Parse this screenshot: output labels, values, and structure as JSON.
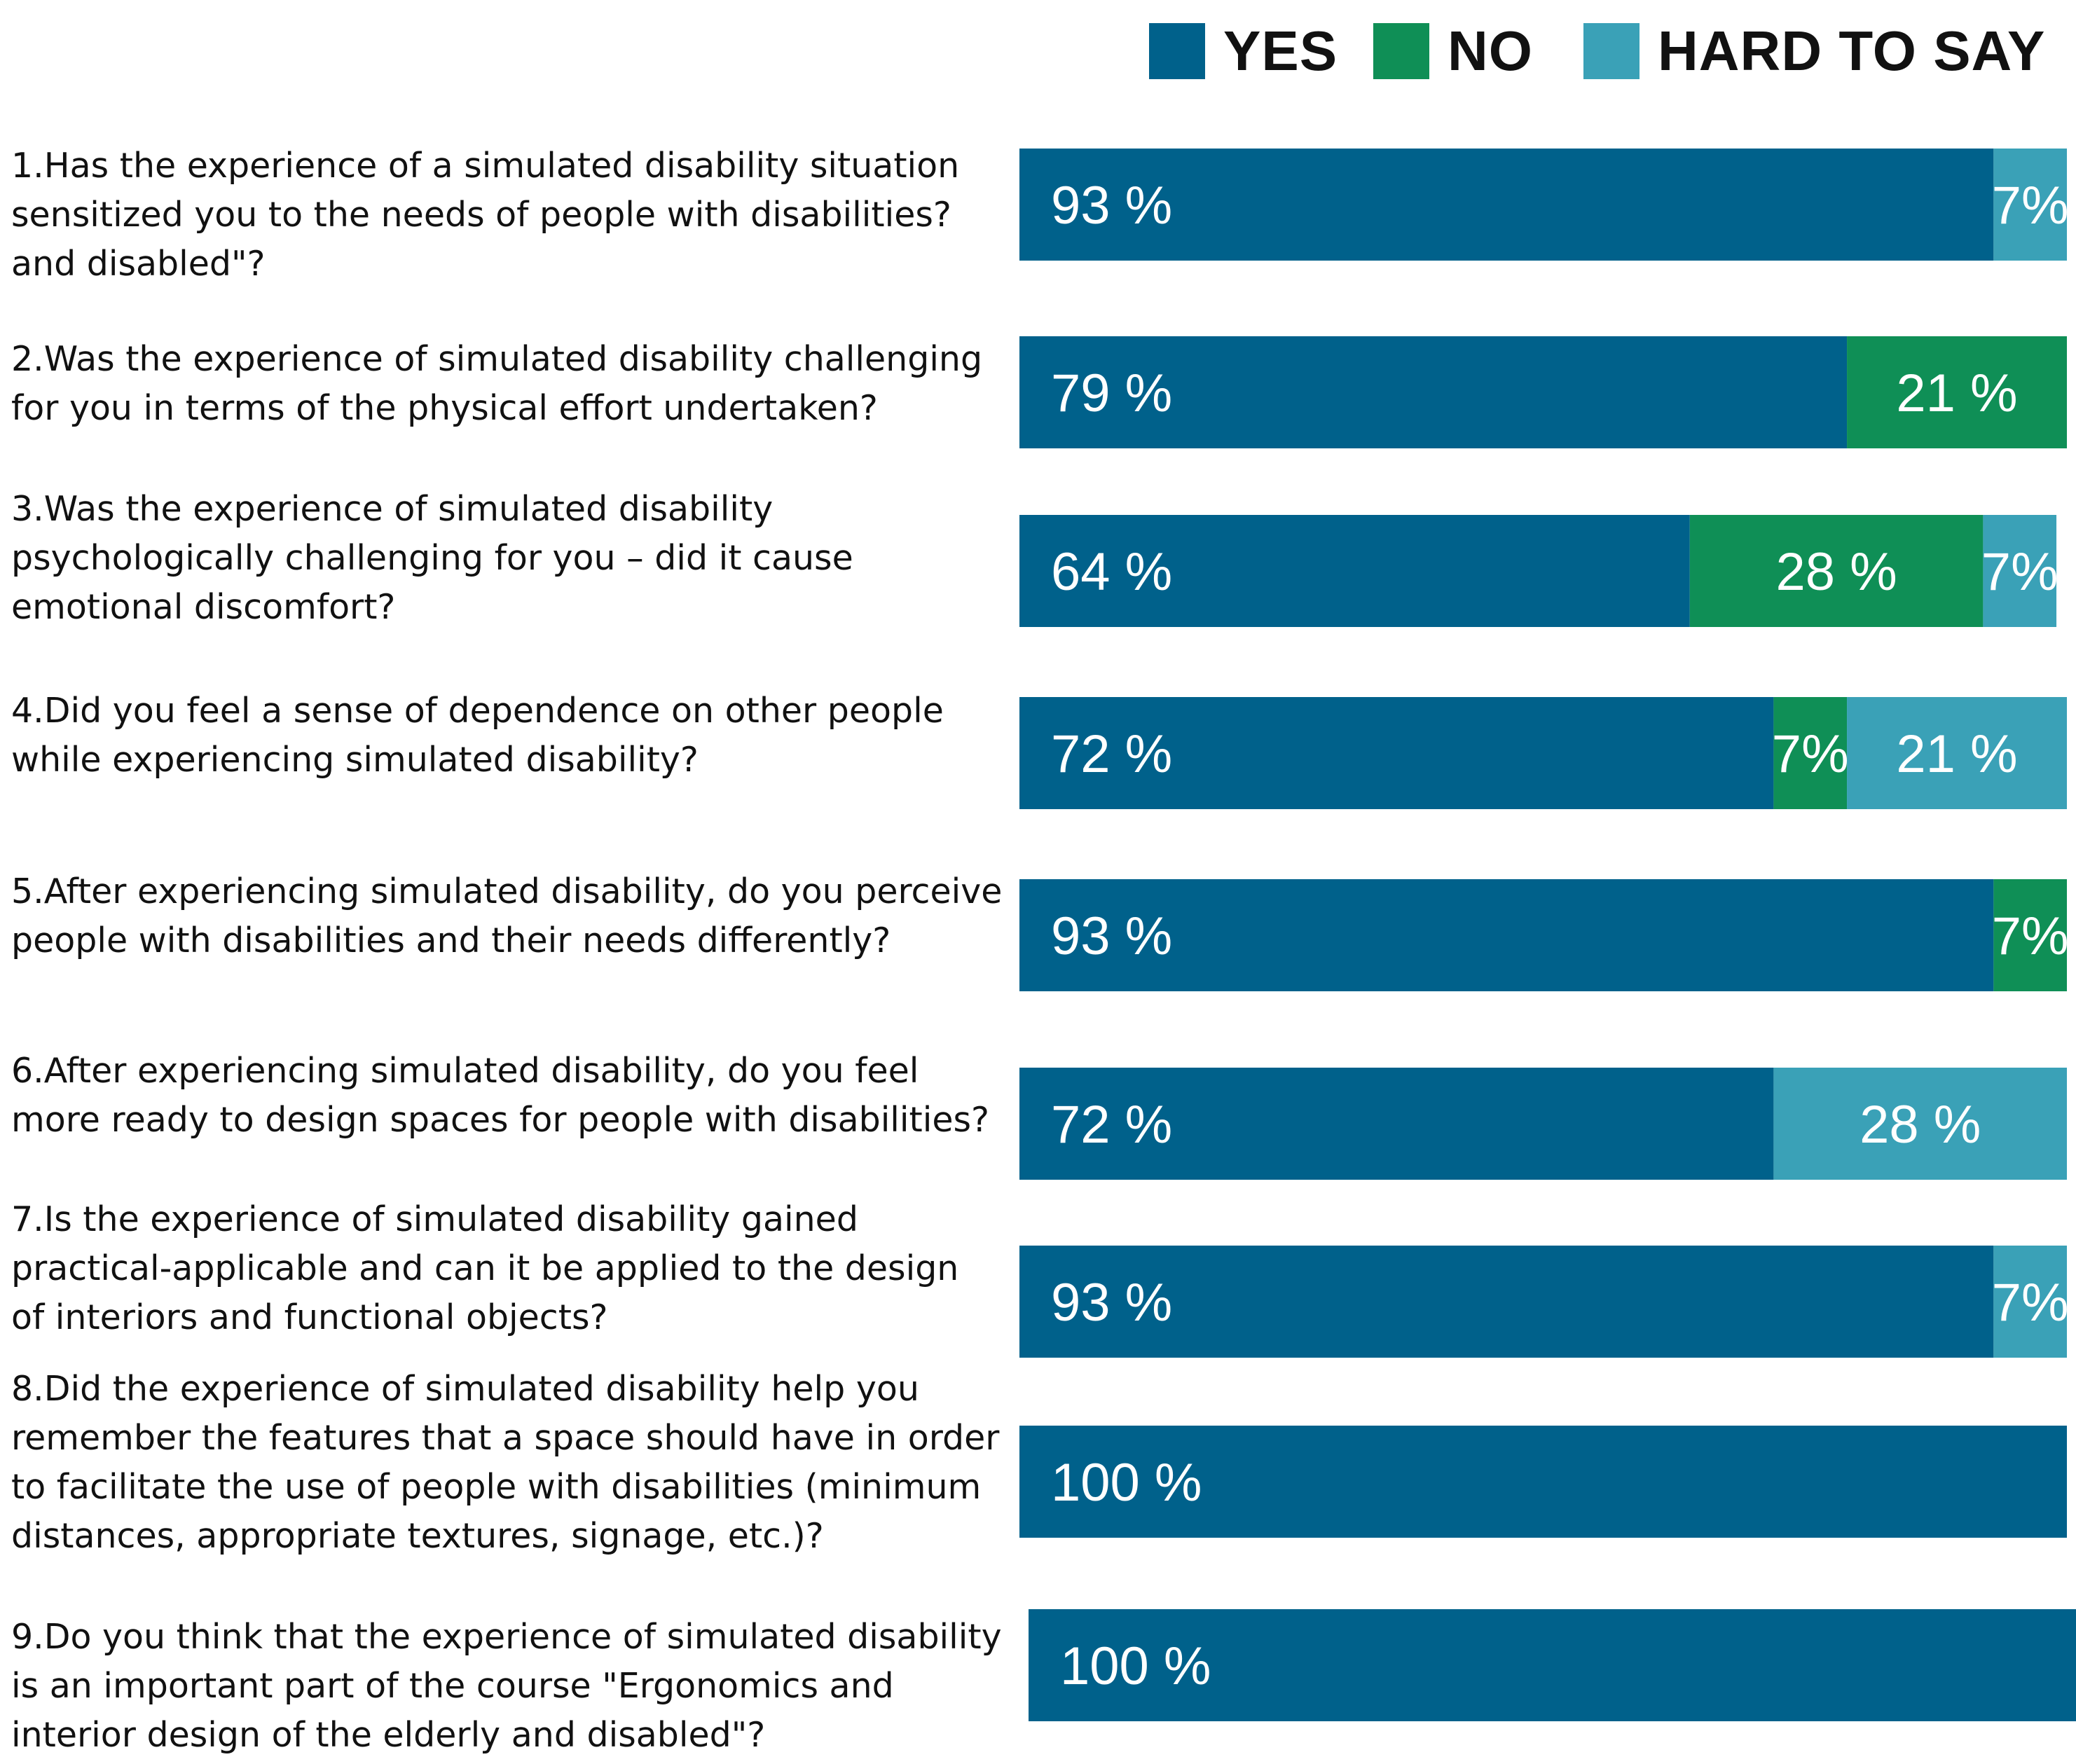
{
  "chart_data": {
    "type": "bar",
    "orientation": "horizontal",
    "stacked": true,
    "title": "",
    "xlabel": "",
    "ylabel": "",
    "xlim": [
      0,
      100
    ],
    "legend": {
      "placement": "top-right",
      "entries": [
        "YES",
        "NO",
        "HARD TO SAY"
      ]
    },
    "colors": {
      "YES": "#00618b",
      "NO": "#0f8f56",
      "HARD TO SAY": "#3aa1b7"
    },
    "categories": [
      [
        "1.Has the experience of a simulated disability situation",
        "sensitized you to the needs of people with disabilities?",
        "and disabled\"?"
      ],
      [
        "2.Was the experience of simulated disability challenging",
        "for you in terms of the physical effort undertaken?"
      ],
      [
        "3.Was the experience of simulated disability",
        "psychologically challenging for you – did it cause",
        "emotional discomfort?"
      ],
      [
        "4.Did you feel a sense of dependence on other people",
        "while experiencing simulated disability?"
      ],
      [
        "5.After experiencing simulated disability, do you perceive",
        "people with disabilities and their needs differently?"
      ],
      [
        "6.After experiencing simulated disability, do you feel",
        "more ready to design spaces for people with disabilities?"
      ],
      [
        "7.Is the experience of simulated disability gained",
        "practical-applicable and can it be applied to the design",
        "of interiors and functional objects?"
      ],
      [
        "8.Did the experience of simulated disability help you",
        "remember the features that a space should have in order",
        "to facilitate the use of people with disabilities (minimum",
        "distances, appropriate textures, signage, etc.)?"
      ],
      [
        "9.Do you think that the experience of simulated disability",
        "is an important part of the course \"Ergonomics and",
        "interior design of the elderly and disabled\"?"
      ]
    ],
    "series": [
      {
        "name": "YES",
        "values": [
          93,
          79,
          64,
          72,
          93,
          72,
          93,
          100,
          100
        ],
        "labels": [
          "93 %",
          "79 %",
          "64 %",
          "72 %",
          "93 %",
          "72 %",
          "93 %",
          "100 %",
          "100 %"
        ]
      },
      {
        "name": "NO",
        "values": [
          0,
          21,
          28,
          7,
          7,
          0,
          0,
          0,
          0
        ],
        "labels": [
          "",
          "21 %",
          "28 %",
          "7%",
          "7%",
          "",
          "",
          "",
          ""
        ]
      },
      {
        "name": "HARD TO SAY",
        "values": [
          7,
          0,
          7,
          21,
          0,
          28,
          7,
          0,
          0
        ],
        "labels": [
          "7%",
          "",
          "7%",
          "21 %",
          "",
          "28 %",
          "7%",
          "",
          ""
        ]
      }
    ]
  }
}
